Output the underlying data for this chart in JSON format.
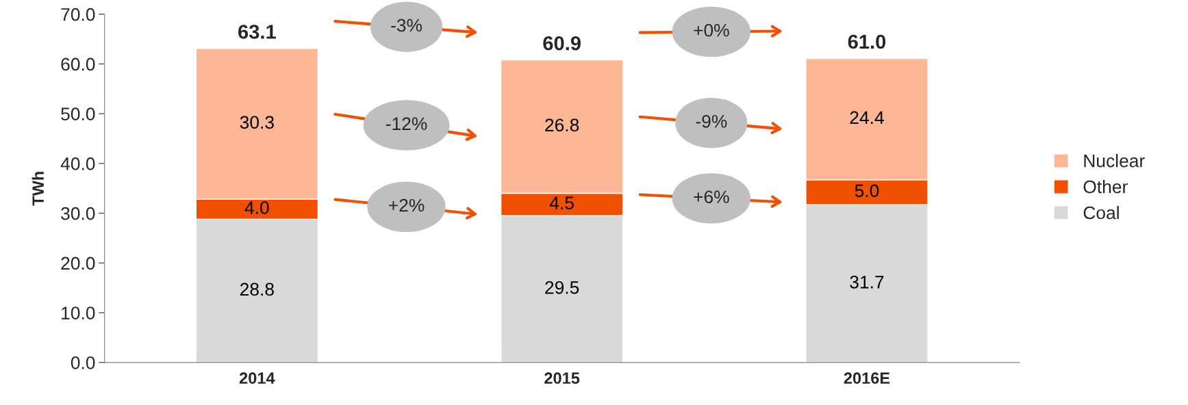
{
  "chart_data": {
    "type": "bar",
    "stacked": true,
    "ylabel": "TWh",
    "categories": [
      "2014",
      "2015",
      "2016E"
    ],
    "series": [
      {
        "name": "Coal",
        "color": "#d9d9d9",
        "values": [
          28.8,
          29.5,
          31.7
        ],
        "value_labels": [
          "28.8",
          "29.5",
          "31.7"
        ]
      },
      {
        "name": "Other",
        "color": "#f05000",
        "values": [
          4.0,
          4.5,
          5.0
        ],
        "value_labels": [
          "4.0",
          "4.5",
          "5.0"
        ]
      },
      {
        "name": "Nuclear",
        "color": "#fdb794",
        "values": [
          30.3,
          26.8,
          24.4
        ],
        "value_labels": [
          "30.3",
          "26.8",
          "24.4"
        ]
      }
    ],
    "ylim": [
      0,
      70
    ],
    "yticks": [
      {
        "value": 0,
        "label": "0.0"
      },
      {
        "value": 10,
        "label": "10.0"
      },
      {
        "value": 20,
        "label": "20.0"
      },
      {
        "value": 30,
        "label": "30.0"
      },
      {
        "value": 40,
        "label": "40.0"
      },
      {
        "value": 50,
        "label": "50.0"
      },
      {
        "value": 60,
        "label": "60.0"
      },
      {
        "value": 70,
        "label": "70.0"
      }
    ],
    "totals": [
      "63.1",
      "60.9",
      "61.0"
    ],
    "annotations": [
      "-3%",
      "+0%",
      "-12%",
      "-9%",
      "+2%",
      "+6%"
    ],
    "legend": "right",
    "grid": false
  }
}
